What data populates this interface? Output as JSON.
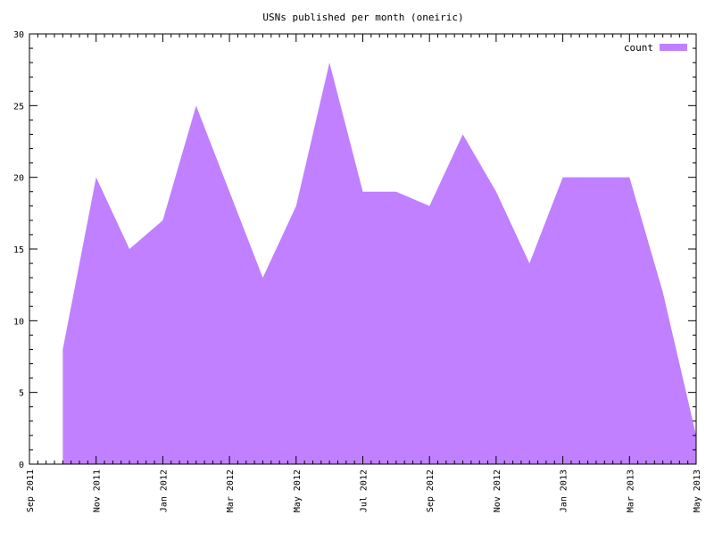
{
  "chart_data": {
    "type": "area",
    "title": "USNs published per month (oneiric)",
    "xlabel": "",
    "ylabel": "",
    "xlim": [
      "2011-09",
      "2013-05"
    ],
    "ylim": [
      0,
      30
    ],
    "grid": false,
    "legend_position": "top-right",
    "y_ticks": [
      0,
      5,
      10,
      15,
      20,
      25,
      30
    ],
    "x_ticks": [
      {
        "value": "2011-09",
        "label": "Sep 2011"
      },
      {
        "value": "2011-11",
        "label": "Nov 2011"
      },
      {
        "value": "2012-01",
        "label": "Jan 2012"
      },
      {
        "value": "2012-03",
        "label": "Mar 2012"
      },
      {
        "value": "2012-05",
        "label": "May 2012"
      },
      {
        "value": "2012-07",
        "label": "Jul 2012"
      },
      {
        "value": "2012-09",
        "label": "Sep 2012"
      },
      {
        "value": "2012-11",
        "label": "Nov 2012"
      },
      {
        "value": "2013-01",
        "label": "Jan 2013"
      },
      {
        "value": "2013-03",
        "label": "Mar 2013"
      },
      {
        "value": "2013-05",
        "label": "May 2013"
      }
    ],
    "series": [
      {
        "name": "count",
        "color": "#c080ff",
        "x": [
          "2011-10",
          "2011-11",
          "2011-12",
          "2012-01",
          "2012-02",
          "2012-03",
          "2012-04",
          "2012-05",
          "2012-06",
          "2012-07",
          "2012-08",
          "2012-09",
          "2012-10",
          "2012-11",
          "2012-12",
          "2013-01",
          "2013-02",
          "2013-03",
          "2013-04",
          "2013-05"
        ],
        "values": [
          8,
          20,
          15,
          17,
          25,
          19,
          13,
          18,
          28,
          19,
          19,
          18,
          23,
          19,
          14,
          20,
          20,
          20,
          12,
          2
        ]
      }
    ]
  }
}
